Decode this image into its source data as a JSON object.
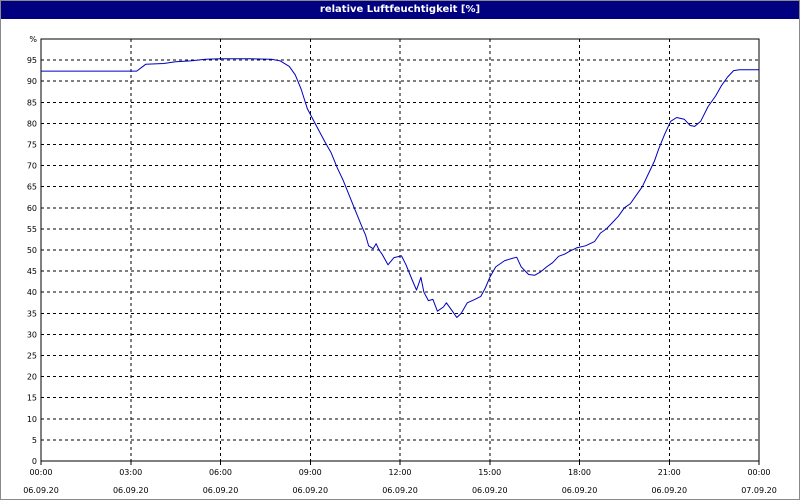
{
  "window": {
    "title": "relative Luftfeuchtigkeit [%]"
  },
  "chart_data": {
    "type": "line",
    "title": "relative Luftfeuchtigkeit [%]",
    "ylabel": "%",
    "xlabel": "",
    "ylim": [
      0,
      100
    ],
    "yticks": [
      0,
      5,
      10,
      15,
      20,
      25,
      30,
      35,
      40,
      45,
      50,
      55,
      60,
      65,
      70,
      75,
      80,
      85,
      90,
      95
    ],
    "xlim_hours": [
      0,
      24
    ],
    "xticks": [
      {
        "time": "00:00",
        "date": "06.09.20"
      },
      {
        "time": "03:00",
        "date": "06.09.20"
      },
      {
        "time": "06:00",
        "date": "06.09.20"
      },
      {
        "time": "09:00",
        "date": "06.09.20"
      },
      {
        "time": "12:00",
        "date": "06.09.20"
      },
      {
        "time": "15:00",
        "date": "06.09.20"
      },
      {
        "time": "18:00",
        "date": "06.09.20"
      },
      {
        "time": "21:00",
        "date": "06.09.20"
      },
      {
        "time": "00:00",
        "date": "07.09.20"
      }
    ],
    "grid": true,
    "line_color": "#0000c0",
    "series": [
      {
        "points": [
          [
            0.0,
            92.4
          ],
          [
            3.2,
            92.4
          ],
          [
            3.35,
            93.2
          ],
          [
            3.5,
            94.0
          ],
          [
            4.1,
            94.2
          ],
          [
            4.5,
            94.6
          ],
          [
            5.0,
            94.8
          ],
          [
            5.5,
            95.2
          ],
          [
            6.0,
            95.3
          ],
          [
            7.0,
            95.3
          ],
          [
            7.7,
            95.2
          ],
          [
            8.0,
            94.8
          ],
          [
            8.3,
            93.5
          ],
          [
            8.5,
            91.5
          ],
          [
            8.7,
            88.0
          ],
          [
            8.9,
            83.5
          ],
          [
            9.2,
            79.5
          ],
          [
            9.5,
            75.5
          ],
          [
            9.7,
            73.0
          ],
          [
            9.9,
            69.5
          ],
          [
            10.1,
            66.5
          ],
          [
            10.3,
            63.0
          ],
          [
            10.5,
            59.5
          ],
          [
            10.7,
            56.0
          ],
          [
            10.85,
            53.5
          ],
          [
            10.95,
            51.0
          ],
          [
            11.1,
            50.3
          ],
          [
            11.2,
            51.5
          ],
          [
            11.3,
            50.0
          ],
          [
            11.4,
            49.0
          ],
          [
            11.6,
            46.5
          ],
          [
            11.8,
            48.2
          ],
          [
            12.05,
            48.6
          ],
          [
            12.2,
            46.5
          ],
          [
            12.4,
            43.0
          ],
          [
            12.55,
            40.5
          ],
          [
            12.7,
            43.5
          ],
          [
            12.8,
            40.0
          ],
          [
            12.95,
            38.0
          ],
          [
            13.1,
            38.3
          ],
          [
            13.25,
            35.5
          ],
          [
            13.45,
            36.5
          ],
          [
            13.55,
            37.5
          ],
          [
            13.75,
            35.5
          ],
          [
            13.9,
            34.0
          ],
          [
            14.05,
            35.0
          ],
          [
            14.25,
            37.5
          ],
          [
            14.5,
            38.3
          ],
          [
            14.7,
            39.0
          ],
          [
            14.85,
            41.0
          ],
          [
            15.0,
            43.5
          ],
          [
            15.2,
            46.0
          ],
          [
            15.5,
            47.5
          ],
          [
            15.75,
            48.0
          ],
          [
            15.9,
            48.3
          ],
          [
            16.05,
            46.0
          ],
          [
            16.3,
            44.2
          ],
          [
            16.5,
            44.0
          ],
          [
            16.7,
            44.8
          ],
          [
            16.9,
            46.0
          ],
          [
            17.1,
            47.0
          ],
          [
            17.3,
            48.5
          ],
          [
            17.5,
            49.0
          ],
          [
            17.7,
            49.8
          ],
          [
            17.9,
            50.5
          ],
          [
            18.2,
            51.0
          ],
          [
            18.5,
            52.0
          ],
          [
            18.7,
            54.0
          ],
          [
            18.9,
            55.0
          ],
          [
            19.1,
            56.5
          ],
          [
            19.3,
            58.0
          ],
          [
            19.5,
            60.0
          ],
          [
            19.7,
            61.0
          ],
          [
            19.85,
            62.5
          ],
          [
            20.1,
            65.0
          ],
          [
            20.3,
            68.0
          ],
          [
            20.5,
            71.0
          ],
          [
            20.65,
            74.0
          ],
          [
            20.85,
            77.5
          ],
          [
            21.05,
            80.5
          ],
          [
            21.25,
            81.4
          ],
          [
            21.5,
            81.0
          ],
          [
            21.7,
            79.5
          ],
          [
            21.85,
            79.3
          ],
          [
            22.05,
            80.5
          ],
          [
            22.3,
            84.0
          ],
          [
            22.55,
            86.5
          ],
          [
            22.75,
            89.0
          ],
          [
            22.95,
            91.0
          ],
          [
            23.15,
            92.5
          ],
          [
            23.35,
            92.7
          ],
          [
            23.7,
            92.7
          ],
          [
            24.1,
            92.7
          ],
          [
            24.4,
            93.5
          ],
          [
            24.7,
            94.5
          ],
          [
            25.2,
            94.6
          ]
        ]
      }
    ]
  }
}
